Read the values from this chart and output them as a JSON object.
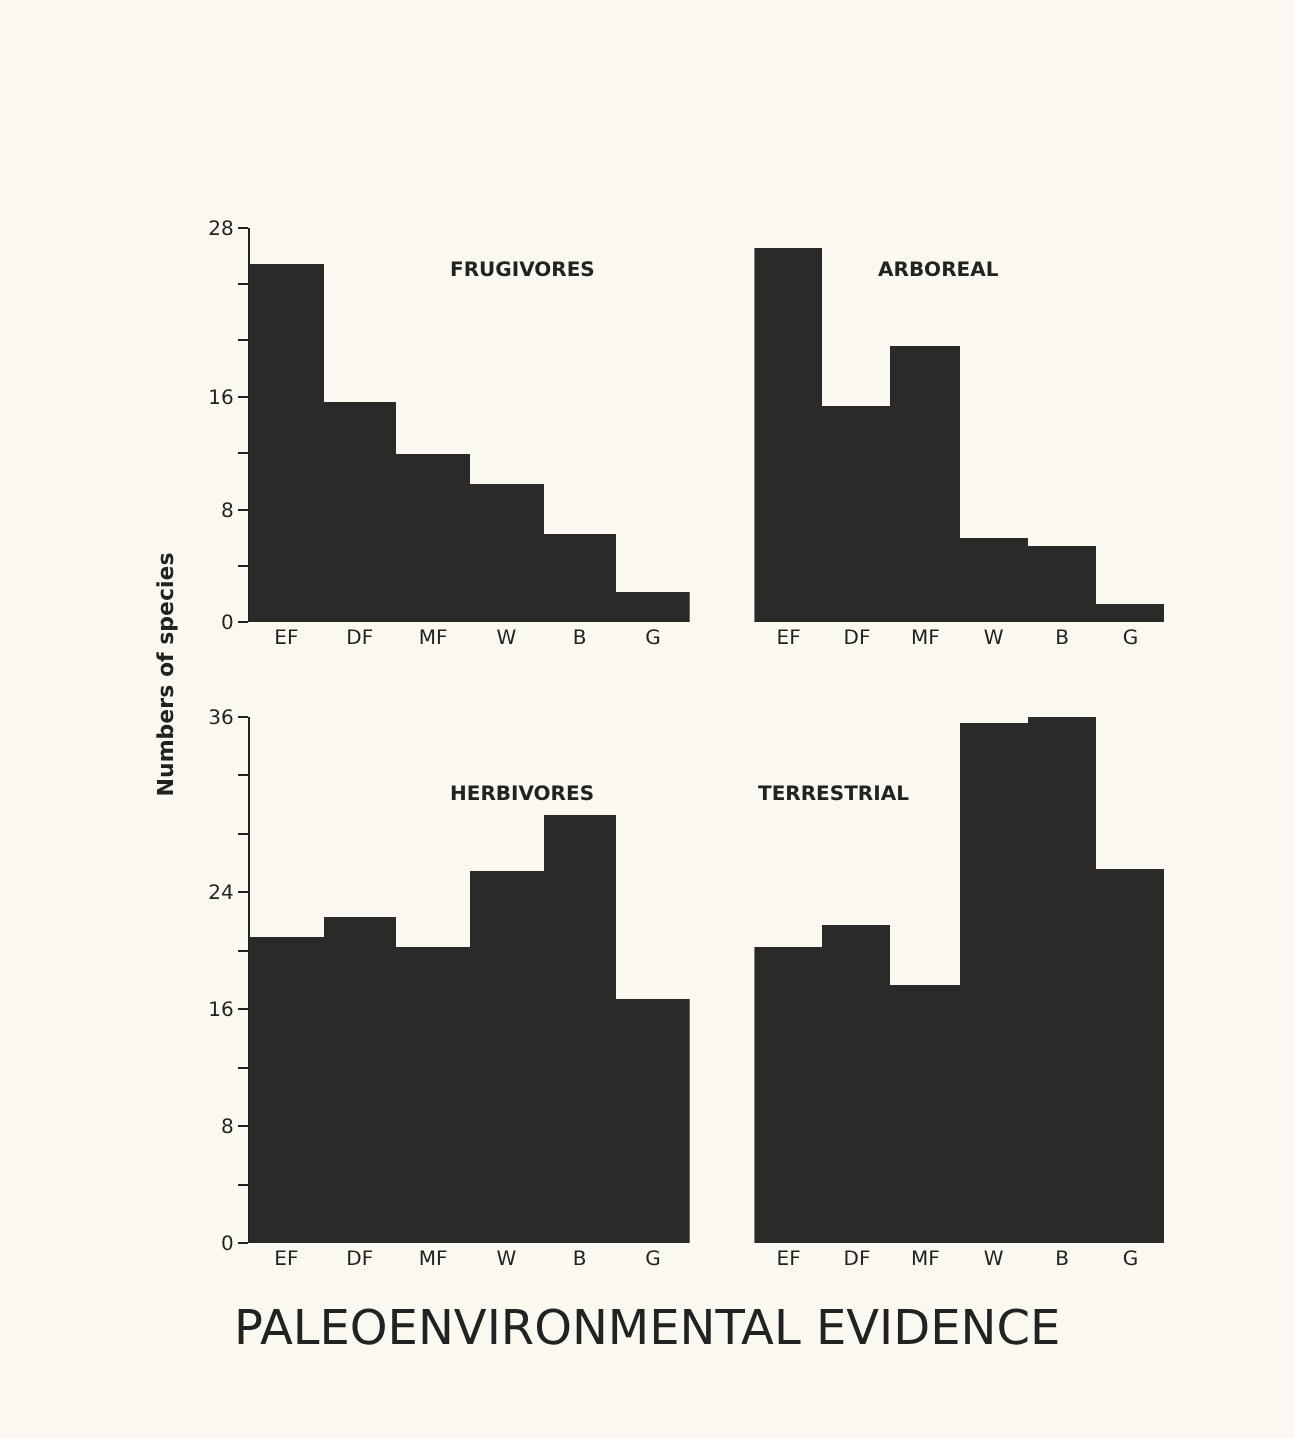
{
  "chart_data": [
    {
      "type": "bar",
      "title": "FRUGIVORES",
      "ylabel": "Numbers of species",
      "categories": [
        "EF",
        "DF",
        "MF",
        "W",
        "B",
        "G"
      ],
      "values": [
        25.4,
        15.6,
        11.9,
        9.8,
        6.3,
        2.1
      ],
      "color": "#2b2a29",
      "ylim": [
        0,
        28
      ],
      "yticks": [
        0,
        {
          "value": 4,
          "label": null
        },
        8,
        {
          "value": 12,
          "label": null
        },
        16,
        {
          "value": 20,
          "label": null
        },
        {
          "value": 24,
          "label": null
        },
        28
      ],
      "grid": false
    },
    {
      "type": "bar",
      "title": "ARBOREAL",
      "categories": [
        "EF",
        "DF",
        "MF",
        "W",
        "B",
        "G"
      ],
      "values": [
        26.6,
        15.4,
        19.6,
        6.0,
        5.4,
        1.3
      ],
      "color": "#2b2a29",
      "ylim": [
        0,
        28
      ],
      "yticks": [
        0,
        8,
        16,
        28
      ],
      "tick_labels": "x",
      "grid": false
    },
    {
      "type": "bar",
      "title": "HERBIVORES",
      "categories": [
        "EF",
        "DF",
        "MF",
        "W",
        "B",
        "G"
      ],
      "values": [
        21.0,
        22.3,
        20.3,
        25.5,
        29.3,
        16.7
      ],
      "color": "#2b2a29",
      "ylim": [
        0,
        36
      ],
      "yticks": [
        0,
        {
          "value": 4,
          "label": null
        },
        8,
        {
          "value": 12,
          "label": null
        },
        16,
        {
          "value": 20,
          "label": null
        },
        24,
        {
          "value": 28,
          "label": null
        },
        {
          "value": 32,
          "label": null
        },
        36
      ],
      "grid": false,
      "annotations": [
        "PALEOENVIRONMENTAL EVIDENCE"
      ]
    },
    {
      "type": "bar",
      "title": "TERRESTRIAL",
      "categories": [
        "EF",
        "DF",
        "MF",
        "W",
        "B",
        "G"
      ],
      "values": [
        20.2,
        21.7,
        17.7,
        35.6,
        36,
        25.6
      ],
      "color": "#2b2a29",
      "ylim": [
        0,
        36
      ],
      "yticks": [
        0,
        8,
        16,
        24,
        36
      ],
      "tick_labels": "x",
      "grid": false
    }
  ]
}
